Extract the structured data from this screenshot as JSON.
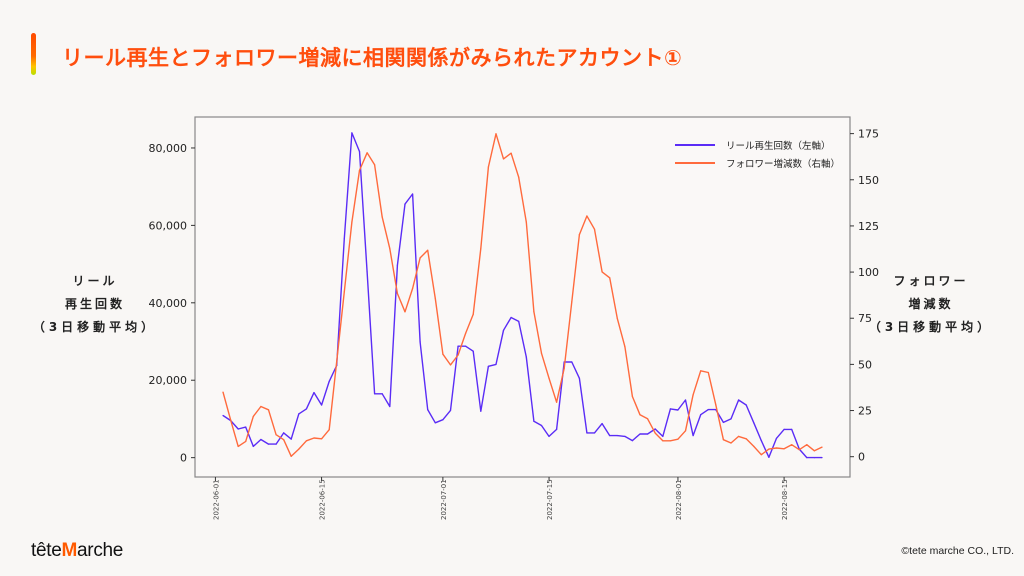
{
  "title": "リール再生とフォロワー増減に相関関係がみられたアカウント①",
  "footer": {
    "logo": "têteMarche",
    "logo_parts": [
      "tête",
      "M",
      "arche"
    ],
    "copyright": "©tete marche CO., LTD."
  },
  "colors": {
    "accent": "#ff4e0e",
    "reel_series": "#5a2cf6",
    "follower_series": "#ff6a3d",
    "background": "#f9f7f5"
  },
  "chart_data": {
    "type": "line",
    "title": "",
    "left_ylabel": [
      "リール",
      "再生回数",
      "（3日移動平均）"
    ],
    "right_ylabel": [
      "フォロワー",
      "増減数",
      "（3日移動平均）"
    ],
    "left_ylim": [
      -5000,
      88000
    ],
    "right_ylim": [
      -11,
      184
    ],
    "left_yticks": [
      0,
      20000,
      40000,
      60000,
      80000
    ],
    "left_ytick_labels": [
      "0",
      "20,000",
      "40,000",
      "60,000",
      "80,000"
    ],
    "right_yticks": [
      0,
      25,
      50,
      75,
      100,
      125,
      150,
      175
    ],
    "right_ytick_labels": [
      "0",
      "25",
      "50",
      "75",
      "100",
      "125",
      "150",
      "175"
    ],
    "xticks": [
      "2022-06-01",
      "2022-06-15",
      "2022-07-01",
      "2022-07-15",
      "2022-08-01",
      "2022-08-15"
    ],
    "grid": false,
    "legend_placement": "top-right",
    "x": [
      "2022-06-02",
      "2022-06-03",
      "2022-06-04",
      "2022-06-05",
      "2022-06-06",
      "2022-06-07",
      "2022-06-08",
      "2022-06-09",
      "2022-06-10",
      "2022-06-11",
      "2022-06-12",
      "2022-06-13",
      "2022-06-14",
      "2022-06-15",
      "2022-06-16",
      "2022-06-17",
      "2022-06-18",
      "2022-06-19",
      "2022-06-20",
      "2022-06-21",
      "2022-06-22",
      "2022-06-23",
      "2022-06-24",
      "2022-06-25",
      "2022-06-26",
      "2022-06-27",
      "2022-06-28",
      "2022-06-29",
      "2022-06-30",
      "2022-07-01",
      "2022-07-02",
      "2022-07-03",
      "2022-07-04",
      "2022-07-05",
      "2022-07-06",
      "2022-07-07",
      "2022-07-08",
      "2022-07-09",
      "2022-07-10",
      "2022-07-11",
      "2022-07-12",
      "2022-07-13",
      "2022-07-14",
      "2022-07-15",
      "2022-07-16",
      "2022-07-17",
      "2022-07-18",
      "2022-07-19",
      "2022-07-20",
      "2022-07-21",
      "2022-07-22",
      "2022-07-23",
      "2022-07-24",
      "2022-07-25",
      "2022-07-26",
      "2022-07-27",
      "2022-07-28",
      "2022-07-29",
      "2022-07-30",
      "2022-07-31",
      "2022-08-01",
      "2022-08-02",
      "2022-08-03",
      "2022-08-04",
      "2022-08-05",
      "2022-08-06",
      "2022-08-07",
      "2022-08-08",
      "2022-08-09",
      "2022-08-10",
      "2022-08-11",
      "2022-08-12",
      "2022-08-13",
      "2022-08-14",
      "2022-08-15",
      "2022-08-16",
      "2022-08-17",
      "2022-08-18",
      "2022-08-19",
      "2022-08-20"
    ],
    "series": [
      {
        "name": "リール再生回数（左軸）",
        "axis": "left",
        "values": [
          10900,
          9600,
          7400,
          7900,
          2900,
          4700,
          3500,
          3500,
          6400,
          4800,
          11300,
          12600,
          16800,
          13600,
          19700,
          23800,
          56600,
          83900,
          79100,
          48000,
          16500,
          16500,
          13200,
          49700,
          65500,
          68100,
          29900,
          12400,
          9000,
          9800,
          12200,
          28800,
          28800,
          27500,
          12000,
          23600,
          24100,
          32900,
          36200,
          35200,
          26000,
          9400,
          8300,
          5500,
          7300,
          24700,
          24700,
          20500,
          6400,
          6400,
          8800,
          5700,
          5700,
          5500,
          4400,
          6100,
          6100,
          7400,
          5500,
          12600,
          12300,
          14900,
          5700,
          11100,
          12400,
          12400,
          9100,
          10000,
          14900,
          13600,
          9000,
          4400,
          100,
          5000,
          7300,
          7300,
          2200,
          0,
          0,
          0
        ]
      },
      {
        "name": "フォロワー増減数（右軸）",
        "axis": "right",
        "values": [
          35,
          20,
          5.6,
          8.3,
          21.8,
          27.2,
          25.4,
          11.9,
          9.2,
          0.2,
          4.1,
          8.6,
          10.1,
          9.7,
          14.6,
          51.5,
          89.3,
          127.1,
          155.1,
          164.6,
          158.1,
          129.8,
          112.7,
          88.4,
          78.5,
          91.1,
          107.7,
          111.8,
          85.7,
          55.5,
          49.7,
          55.1,
          66.8,
          77.1,
          112.7,
          156.9,
          174.9,
          161.3,
          164.4,
          151.4,
          127.1,
          78.5,
          56,
          42.5,
          29.5,
          47.9,
          83.9,
          120.3,
          130.4,
          123.2,
          100.1,
          96.9,
          74.9,
          59.6,
          32.6,
          22.7,
          20.5,
          12.8,
          8.6,
          8.6,
          9.5,
          14,
          33.5,
          46.5,
          45.6,
          28.1,
          9.2,
          7.4,
          11,
          9.7,
          5.6,
          1.1,
          4.1,
          4.7,
          4.3,
          6.5,
          3.8,
          6.5,
          3.2,
          5.2
        ]
      }
    ]
  }
}
